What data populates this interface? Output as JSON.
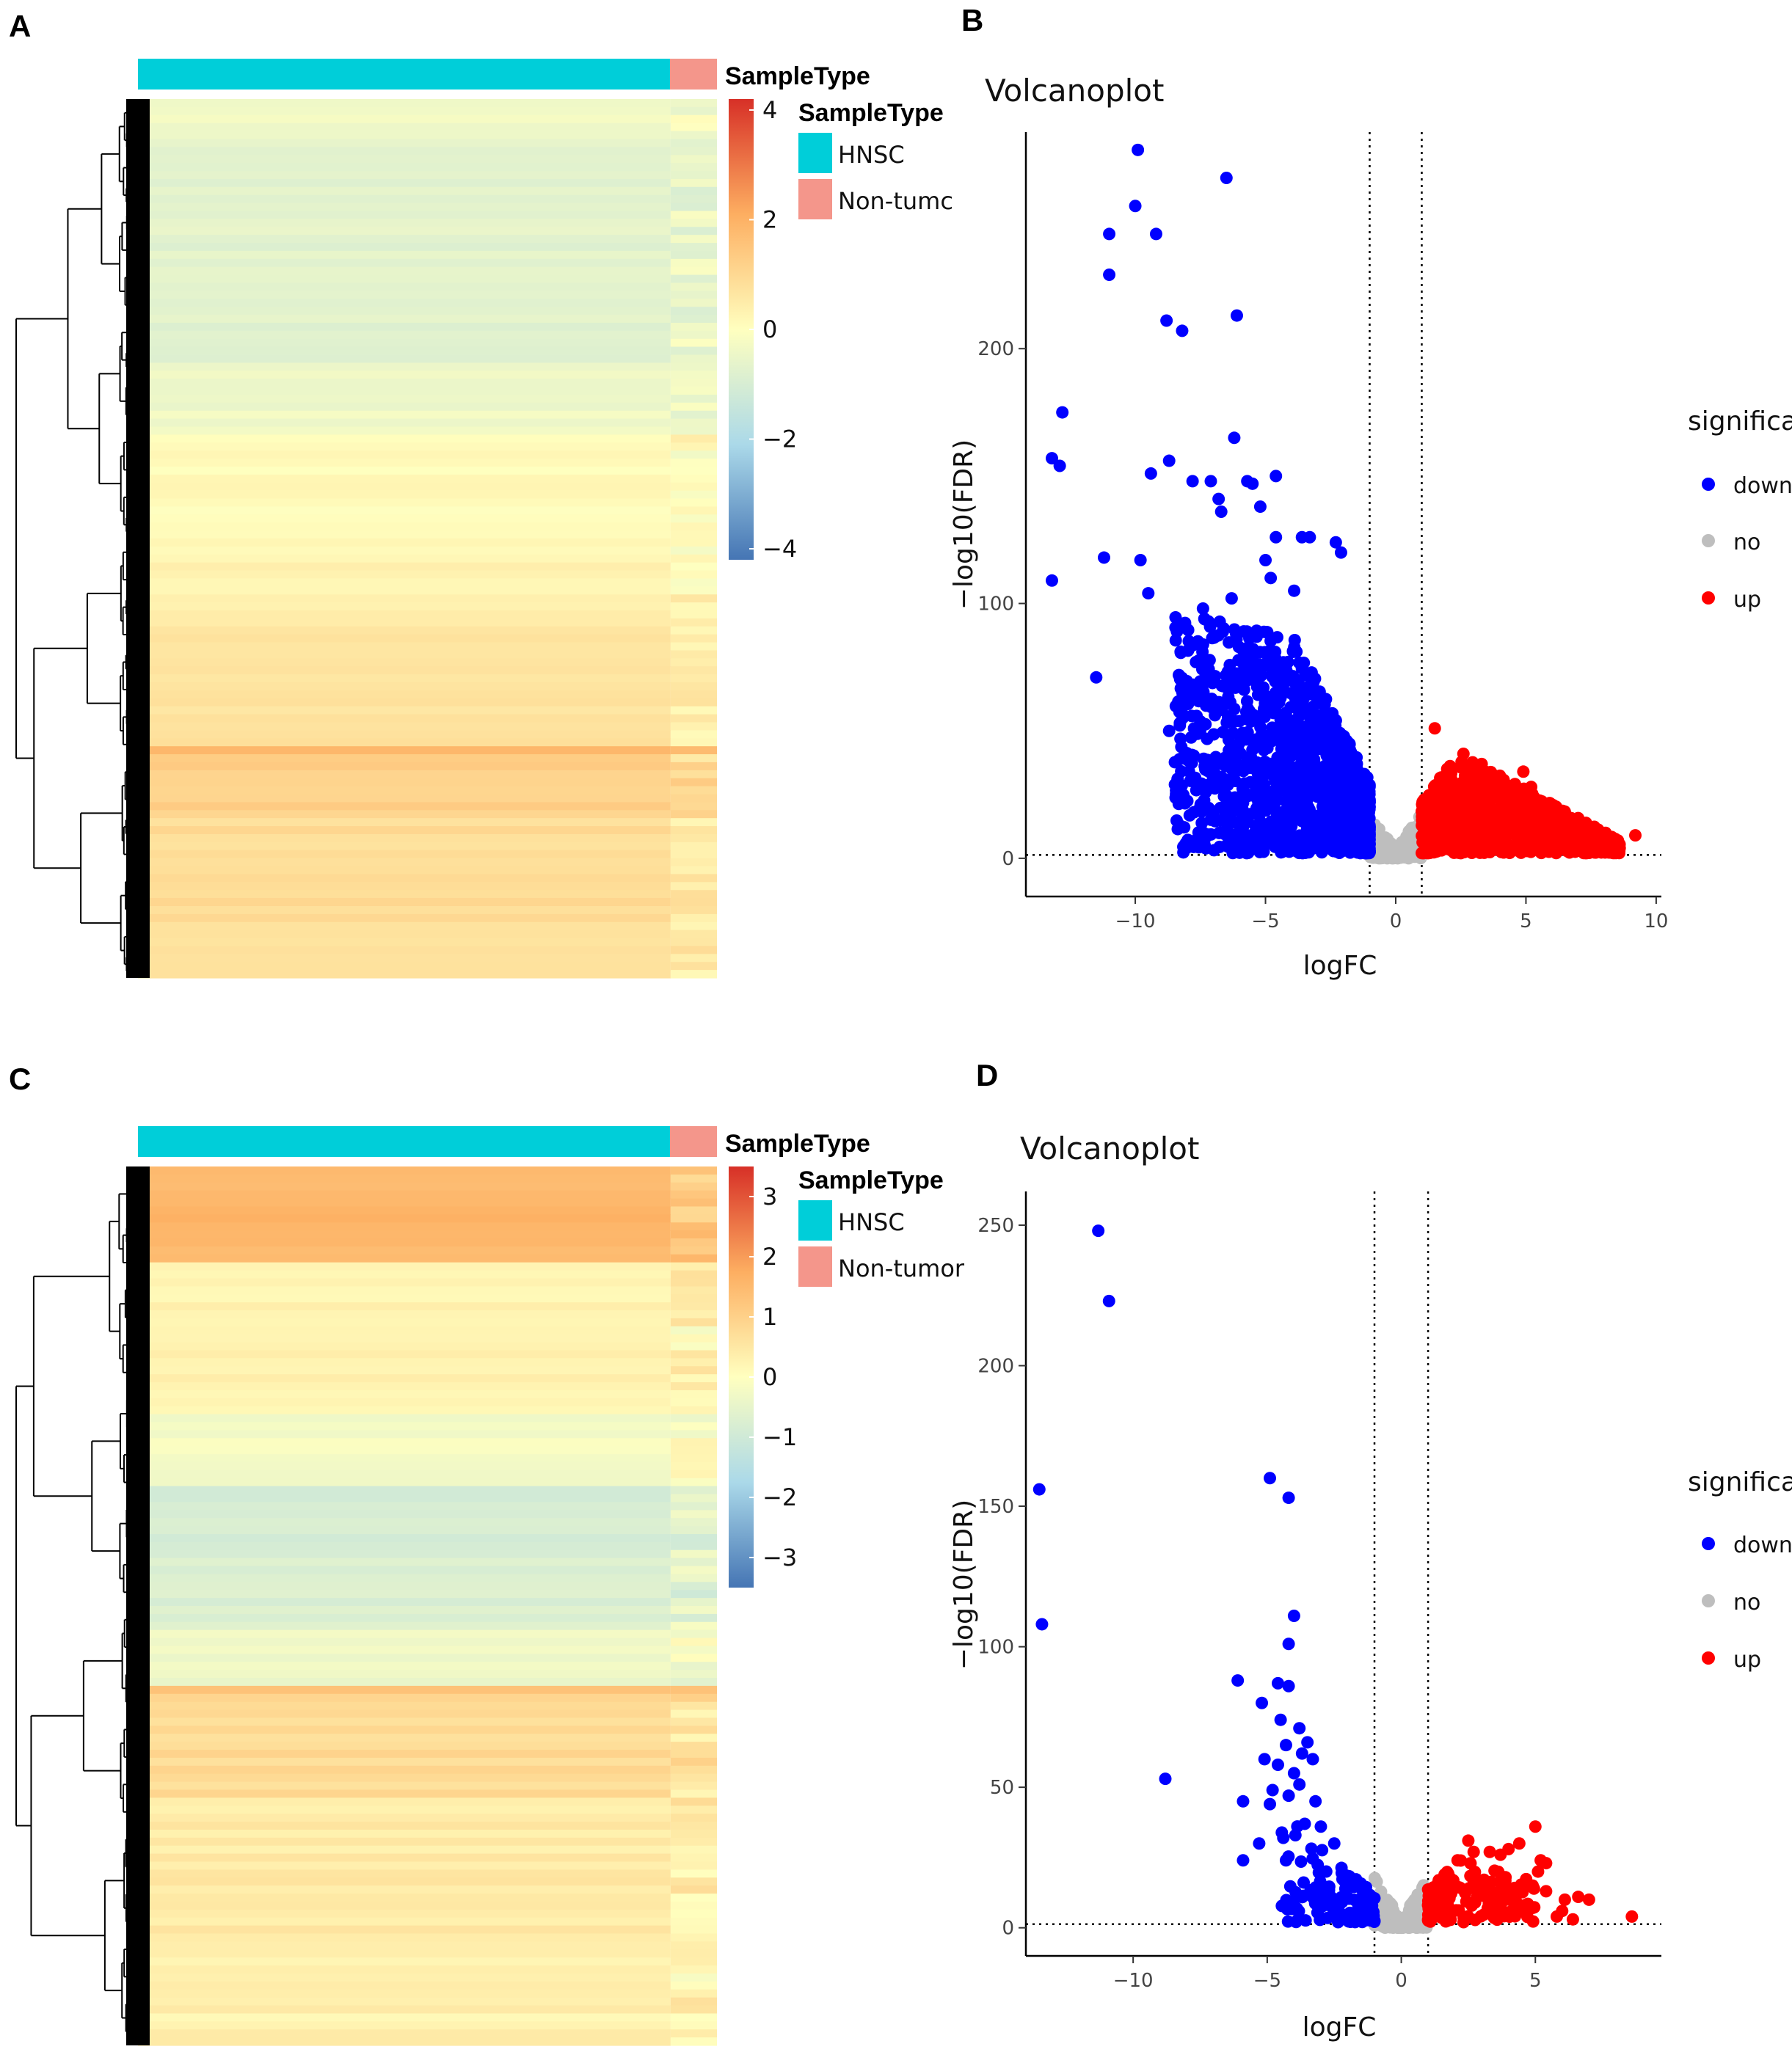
{
  "panels": {
    "A": "A",
    "B": "B",
    "C": "C",
    "D": "D"
  },
  "colors": {
    "hnsc": "#00CED9",
    "non_tumor": "#F4968B",
    "down": "#0000FF",
    "no": "#BEBEBE",
    "up": "#FF0000",
    "heat_low": "#4575B4",
    "heat_mid": "#FFFFBF",
    "heat_high": "#D73027"
  },
  "chart_data": [
    {
      "id": "A",
      "type": "heatmap",
      "annotation_title": "SampleType",
      "legend": {
        "title": "SampleType",
        "entries": [
          {
            "label": "HNSC",
            "color": "#00CED9"
          },
          {
            "label": "Non-tumc",
            "color": "#F4968B"
          }
        ]
      },
      "groups": [
        {
          "name": "HNSC",
          "fraction": 0.92
        },
        {
          "name": "Non-tumor",
          "fraction": 0.08
        }
      ],
      "colorbar": {
        "min": -4.2,
        "max": 4.2,
        "ticks": [
          4,
          2,
          0,
          -2,
          -4
        ],
        "tick_labels": [
          "4",
          "2",
          "0",
          "−2",
          "−4"
        ]
      },
      "row_bands": [
        {
          "from": 0.0,
          "to": 0.05,
          "value": -0.3
        },
        {
          "from": 0.05,
          "to": 0.3,
          "value": -0.7
        },
        {
          "from": 0.3,
          "to": 0.38,
          "value": -0.4
        },
        {
          "from": 0.38,
          "to": 0.53,
          "value": 0.1
        },
        {
          "from": 0.53,
          "to": 0.6,
          "value": 0.35
        },
        {
          "from": 0.6,
          "to": 0.74,
          "value": 0.7
        },
        {
          "from": 0.74,
          "to": 0.75,
          "value": 1.8
        },
        {
          "from": 0.75,
          "to": 0.82,
          "value": 1.2
        },
        {
          "from": 0.82,
          "to": 0.95,
          "value": 0.9
        },
        {
          "from": 0.95,
          "to": 1.0,
          "value": 0.7
        }
      ]
    },
    {
      "id": "B",
      "type": "scatter",
      "title": "Volcanoplot",
      "xlabel": "logFC",
      "ylabel": "−log10(FDR)",
      "xlim": [
        -14.2,
        10.2
      ],
      "ylim": [
        -15,
        285
      ],
      "xticks": [
        -10,
        -5,
        0,
        5,
        10
      ],
      "xtick_labels": [
        "−10",
        "−5",
        "0",
        "5",
        "10"
      ],
      "yticks": [
        0,
        100,
        200
      ],
      "ytick_labels": [
        "0",
        "100",
        "200"
      ],
      "vlines": [
        -1,
        1
      ],
      "hline": 1.3,
      "legend": {
        "title": "significant",
        "entries": [
          {
            "label": "down",
            "color": "#0000FF"
          },
          {
            "label": "no",
            "color": "#BEBEBE"
          },
          {
            "label": "up",
            "color": "#FF0000"
          }
        ]
      },
      "clouds": {
        "down": {
          "x_min": -8.5,
          "x_max": -1.0,
          "peak": 80,
          "count": 1300,
          "tightness": 1.6
        },
        "no": {
          "x_min": -1.0,
          "x_max": 1.0,
          "count": 260
        },
        "up": {
          "x_min": 1.0,
          "x_max": 8.6,
          "peak": 36,
          "count": 850,
          "tightness": 1.3
        }
      },
      "series": [
        {
          "name": "down",
          "points": [
            [
              -9.9,
              278
            ],
            [
              -6.5,
              267
            ],
            [
              -10.0,
              256
            ],
            [
              -11.0,
              245
            ],
            [
              -9.2,
              245
            ],
            [
              -11.0,
              229
            ],
            [
              -6.1,
              213
            ],
            [
              -8.8,
              211
            ],
            [
              -8.2,
              207
            ],
            [
              -12.8,
              175
            ],
            [
              -13.2,
              157
            ],
            [
              -12.9,
              154
            ],
            [
              -6.2,
              165
            ],
            [
              -8.7,
              156
            ],
            [
              -9.4,
              151
            ],
            [
              -7.1,
              148
            ],
            [
              -7.8,
              148
            ],
            [
              -5.7,
              148
            ],
            [
              -5.5,
              147
            ],
            [
              -4.6,
              150
            ],
            [
              -5.2,
              138
            ],
            [
              -6.7,
              136
            ],
            [
              -6.8,
              141
            ],
            [
              -4.6,
              126
            ],
            [
              -3.6,
              126
            ],
            [
              -3.3,
              126
            ],
            [
              -11.2,
              118
            ],
            [
              -9.8,
              117
            ],
            [
              -2.3,
              124
            ],
            [
              -2.1,
              120
            ],
            [
              -13.2,
              109
            ],
            [
              -9.5,
              104
            ],
            [
              -11.5,
              71
            ],
            [
              -8.7,
              50
            ],
            [
              -5.0,
              117
            ],
            [
              -4.8,
              110
            ],
            [
              -6.3,
              102
            ],
            [
              -7.4,
              98
            ],
            [
              -8.4,
              89
            ],
            [
              -3.9,
              105
            ]
          ]
        },
        {
          "name": "up",
          "points": [
            [
              1.5,
              51
            ],
            [
              9.2,
              9
            ],
            [
              8.6,
              4
            ],
            [
              7.6,
              12
            ],
            [
              6.8,
              14
            ],
            [
              5.9,
              19
            ],
            [
              4.9,
              34
            ],
            [
              3.3,
              37
            ],
            [
              2.6,
              41
            ],
            [
              5.2,
              28
            ],
            [
              6.4,
              17
            ],
            [
              7.2,
              10
            ]
          ]
        },
        {
          "name": "no",
          "points": []
        }
      ]
    },
    {
      "id": "C",
      "type": "heatmap",
      "annotation_title": "SampleType",
      "legend": {
        "title": "SampleType",
        "entries": [
          {
            "label": "HNSC",
            "color": "#00CED9"
          },
          {
            "label": "Non-tumor",
            "color": "#F4968B"
          }
        ]
      },
      "groups": [
        {
          "name": "HNSC",
          "fraction": 0.92
        },
        {
          "name": "Non-tumor",
          "fraction": 0.08
        }
      ],
      "colorbar": {
        "min": -3.5,
        "max": 3.5,
        "ticks": [
          3,
          2,
          1,
          0,
          -1,
          -2,
          -3
        ],
        "tick_labels": [
          "3",
          "2",
          "1",
          "0",
          "−1",
          "−2",
          "−3"
        ]
      },
      "row_bands": [
        {
          "from": 0.0,
          "to": 0.11,
          "value": 1.6
        },
        {
          "from": 0.11,
          "to": 0.28,
          "value": 0.3
        },
        {
          "from": 0.28,
          "to": 0.36,
          "value": -0.2
        },
        {
          "from": 0.36,
          "to": 0.53,
          "value": -0.8
        },
        {
          "from": 0.53,
          "to": 0.59,
          "value": -0.3
        },
        {
          "from": 0.59,
          "to": 0.6,
          "value": 1.4
        },
        {
          "from": 0.6,
          "to": 0.72,
          "value": 0.8
        },
        {
          "from": 0.72,
          "to": 0.88,
          "value": 0.45
        },
        {
          "from": 0.88,
          "to": 1.0,
          "value": 0.3
        }
      ]
    },
    {
      "id": "D",
      "type": "scatter",
      "title": "Volcanoplot",
      "xlabel": "logFC",
      "ylabel": "−log10(FDR)",
      "xlim": [
        -14.0,
        9.7
      ],
      "ylim": [
        -10,
        262
      ],
      "xticks": [
        -10,
        -5,
        0,
        5
      ],
      "xtick_labels": [
        "−10",
        "−5",
        "0",
        "5"
      ],
      "yticks": [
        0,
        50,
        100,
        150,
        200,
        250
      ],
      "ytick_labels": [
        "0",
        "50",
        "100",
        "150",
        "200",
        "250"
      ],
      "vlines": [
        -1,
        1
      ],
      "hline": 1.3,
      "legend": {
        "title": "significant",
        "entries": [
          {
            "label": "down",
            "color": "#0000FF"
          },
          {
            "label": "no",
            "color": "#BEBEBE"
          },
          {
            "label": "up",
            "color": "#FF0000"
          }
        ]
      },
      "clouds": {
        "down": {
          "x_min": -4.5,
          "x_max": -1.0,
          "peak": 30,
          "count": 120,
          "tightness": 1.4
        },
        "no": {
          "x_min": -1.0,
          "x_max": 1.0,
          "count": 150
        },
        "up": {
          "x_min": 1.0,
          "x_max": 5.0,
          "peak": 22,
          "count": 150,
          "tightness": 1.6
        }
      },
      "series": [
        {
          "name": "down",
          "points": [
            [
              -11.3,
              248
            ],
            [
              -10.9,
              223
            ],
            [
              -13.5,
              156
            ],
            [
              -13.4,
              108
            ],
            [
              -4.9,
              160
            ],
            [
              -4.2,
              153
            ],
            [
              -4.0,
              111
            ],
            [
              -4.2,
              101
            ],
            [
              -6.1,
              88
            ],
            [
              -4.6,
              87
            ],
            [
              -4.2,
              86
            ],
            [
              -5.2,
              80
            ],
            [
              -8.8,
              53
            ],
            [
              -4.5,
              74
            ],
            [
              -3.8,
              71
            ],
            [
              -3.5,
              66
            ],
            [
              -4.3,
              65
            ],
            [
              -3.7,
              62
            ],
            [
              -3.3,
              60
            ],
            [
              -5.1,
              60
            ],
            [
              -4.6,
              58
            ],
            [
              -4.0,
              55
            ],
            [
              -3.8,
              51
            ],
            [
              -4.8,
              49
            ],
            [
              -5.9,
              45
            ],
            [
              -4.9,
              44
            ],
            [
              -4.2,
              47
            ],
            [
              -3.2,
              45
            ],
            [
              -3.6,
              37
            ],
            [
              -4.4,
              32
            ],
            [
              -5.3,
              30
            ],
            [
              -5.9,
              24
            ],
            [
              -4.3,
              24
            ],
            [
              -3.0,
              36
            ],
            [
              -2.5,
              30
            ]
          ]
        },
        {
          "name": "up",
          "points": [
            [
              8.6,
              4
            ],
            [
              7.0,
              10
            ],
            [
              6.6,
              11
            ],
            [
              6.1,
              10
            ],
            [
              6.4,
              3
            ],
            [
              5.4,
              13
            ],
            [
              4.9,
              15
            ],
            [
              5.2,
              24
            ],
            [
              5.4,
              23
            ],
            [
              5.1,
              20
            ],
            [
              5.0,
              36
            ],
            [
              4.4,
              30
            ],
            [
              4.0,
              28
            ],
            [
              3.7,
              26
            ],
            [
              3.3,
              27
            ],
            [
              2.5,
              31
            ],
            [
              2.7,
              27
            ],
            [
              2.1,
              24
            ],
            [
              1.8,
              18
            ],
            [
              3.9,
              10
            ],
            [
              4.6,
              8
            ],
            [
              5.8,
              4
            ],
            [
              6.0,
              6
            ]
          ]
        },
        {
          "name": "no",
          "points": []
        }
      ]
    }
  ]
}
